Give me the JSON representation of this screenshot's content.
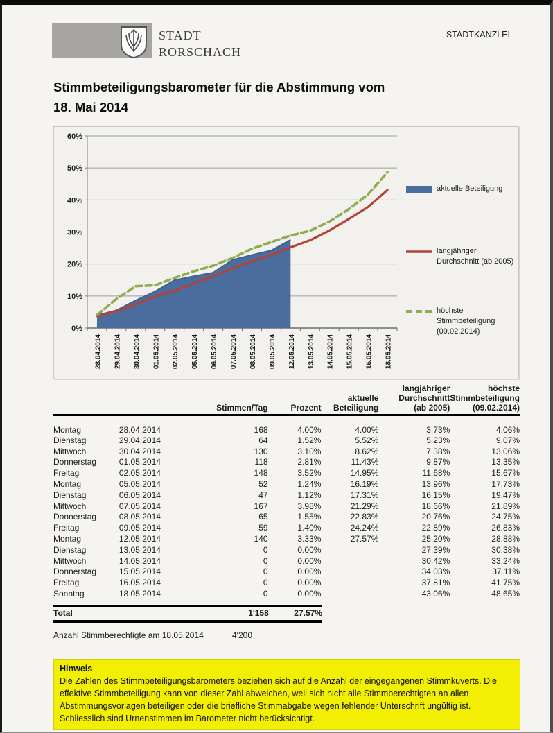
{
  "header": {
    "stadtkanzlei": "STADTKANZLEI",
    "logo_line1": "STADT",
    "logo_line2": "RORSCHACH"
  },
  "title_line1": "Stimmbeteiligungsbarometer für die Abstimmung vom",
  "title_line2": "18. Mai 2014",
  "chart_data": {
    "type": "area",
    "categories": [
      "28.04.2014",
      "29.04.2014",
      "30.04.2014",
      "01.05.2014",
      "02.05.2014",
      "05.05.2014",
      "06.05.2014",
      "07.05.2014",
      "08.05.2014",
      "09.05.2014",
      "12.05.2014",
      "13.05.2014",
      "14.05.2014",
      "15.05.2014",
      "16.05.2014",
      "18.05.2014"
    ],
    "series": [
      {
        "name": "aktuelle Beteiligung",
        "style": "area",
        "color": "#4a6d9e",
        "edge_color": "#41628f",
        "values": [
          4.0,
          5.52,
          8.62,
          11.43,
          14.95,
          16.19,
          17.31,
          21.29,
          22.83,
          24.24,
          27.57,
          null,
          null,
          null,
          null,
          null
        ]
      },
      {
        "name": "langjähriger Durchschnitt (ab 2005)",
        "style": "line",
        "color": "#b2423c",
        "values": [
          3.73,
          5.23,
          7.38,
          9.87,
          11.68,
          13.96,
          16.15,
          18.66,
          20.76,
          22.89,
          25.2,
          27.39,
          30.42,
          34.03,
          37.81,
          43.06
        ]
      },
      {
        "name": "höchste Stimmbeteiligung (09.02.2014)",
        "style": "dashed-line",
        "color": "#92ac53",
        "values": [
          4.06,
          9.07,
          13.06,
          13.35,
          15.67,
          17.73,
          19.47,
          21.89,
          24.75,
          26.83,
          28.88,
          30.38,
          33.24,
          37.11,
          41.75,
          48.65
        ]
      }
    ],
    "ylim": [
      0,
      60
    ],
    "ytick_step": 10,
    "ytick_suffix": "%",
    "grid": true,
    "legend_position": "right",
    "legend": [
      "aktuelle Beteiligung",
      "langjähriger Durchschnitt (ab 2005)",
      "höchste Stimmbeteiligung (09.02.2014)"
    ]
  },
  "table": {
    "headers": {
      "day": "",
      "date": "",
      "stimmen": "Stimmen/Tag",
      "prozent": "Prozent",
      "aktuelle": "aktuelle\nBeteiligung",
      "durchschnitt": "langjähriger\nDurchschnitt\n(ab 2005)",
      "hoechste": "höchste\nStimmbeteiligung\n(09.02.2014)"
    },
    "rows": [
      {
        "day": "Montag",
        "date": "28.04.2014",
        "stimmen": "168",
        "prozent": "4.00%",
        "aktuelle": "4.00%",
        "durchschnitt": "3.73%",
        "hoechste": "4.06%"
      },
      {
        "day": "Dienstag",
        "date": "29.04.2014",
        "stimmen": "64",
        "prozent": "1.52%",
        "aktuelle": "5.52%",
        "durchschnitt": "5.23%",
        "hoechste": "9.07%"
      },
      {
        "day": "Mittwoch",
        "date": "30.04.2014",
        "stimmen": "130",
        "prozent": "3.10%",
        "aktuelle": "8.62%",
        "durchschnitt": "7.38%",
        "hoechste": "13.06%"
      },
      {
        "day": "Donnerstag",
        "date": "01.05.2014",
        "stimmen": "118",
        "prozent": "2.81%",
        "aktuelle": "11.43%",
        "durchschnitt": "9.87%",
        "hoechste": "13.35%"
      },
      {
        "day": "Freitag",
        "date": "02.05.2014",
        "stimmen": "148",
        "prozent": "3.52%",
        "aktuelle": "14.95%",
        "durchschnitt": "11.68%",
        "hoechste": "15.67%"
      },
      {
        "day": "Montag",
        "date": "05.05.2014",
        "stimmen": "52",
        "prozent": "1.24%",
        "aktuelle": "16.19%",
        "durchschnitt": "13.96%",
        "hoechste": "17.73%"
      },
      {
        "day": "Dienstag",
        "date": "06.05.2014",
        "stimmen": "47",
        "prozent": "1.12%",
        "aktuelle": "17.31%",
        "durchschnitt": "16.15%",
        "hoechste": "19.47%"
      },
      {
        "day": "Mittwoch",
        "date": "07.05.2014",
        "stimmen": "167",
        "prozent": "3.98%",
        "aktuelle": "21.29%",
        "durchschnitt": "18.66%",
        "hoechste": "21.89%"
      },
      {
        "day": "Donnerstag",
        "date": "08.05.2014",
        "stimmen": "65",
        "prozent": "1.55%",
        "aktuelle": "22.83%",
        "durchschnitt": "20.76%",
        "hoechste": "24.75%"
      },
      {
        "day": "Freitag",
        "date": "09.05.2014",
        "stimmen": "59",
        "prozent": "1.40%",
        "aktuelle": "24.24%",
        "durchschnitt": "22.89%",
        "hoechste": "26.83%"
      },
      {
        "day": "Montag",
        "date": "12.05.2014",
        "stimmen": "140",
        "prozent": "3.33%",
        "aktuelle": "27.57%",
        "durchschnitt": "25.20%",
        "hoechste": "28.88%"
      },
      {
        "day": "Dienstag",
        "date": "13.05.2014",
        "stimmen": "0",
        "prozent": "0.00%",
        "aktuelle": "",
        "durchschnitt": "27.39%",
        "hoechste": "30.38%"
      },
      {
        "day": "Mittwoch",
        "date": "14.05.2014",
        "stimmen": "0",
        "prozent": "0.00%",
        "aktuelle": "",
        "durchschnitt": "30.42%",
        "hoechste": "33.24%"
      },
      {
        "day": "Donnerstag",
        "date": "15.05.2014",
        "stimmen": "0",
        "prozent": "0.00%",
        "aktuelle": "",
        "durchschnitt": "34.03%",
        "hoechste": "37.11%"
      },
      {
        "day": "Freitag",
        "date": "16.05.2014",
        "stimmen": "0",
        "prozent": "0.00%",
        "aktuelle": "",
        "durchschnitt": "37.81%",
        "hoechste": "41.75%"
      },
      {
        "day": "Sonntag",
        "date": "18.05.2014",
        "stimmen": "0",
        "prozent": "0.00%",
        "aktuelle": "",
        "durchschnitt": "43.06%",
        "hoechste": "48.65%"
      }
    ],
    "total": {
      "label": "Total",
      "stimmen": "1'158",
      "prozent": "27.57%"
    },
    "eligible_label": "Anzahl Stimmberechtigte am 18.05.2014",
    "eligible_value": "4'200"
  },
  "note": {
    "title": "Hinweis",
    "text": "Die Zahlen des Stimmbeteiligungsbarometers beziehen sich auf die Anzahl der eingegangenen Stimmkuverts. Die effektive Stimmbeteiligung kann von dieser Zahl abweichen, weil sich nicht alle Stimmberechtigten an allen Abstimmungsvorlagen beteiligen oder die briefliche Stimmabgabe wegen fehlender Unterschrift ungültig ist. Schliesslich sind Urnenstimmen im Barometer nicht berücksichtigt.",
    "highlight_color": "#f2ee04"
  }
}
